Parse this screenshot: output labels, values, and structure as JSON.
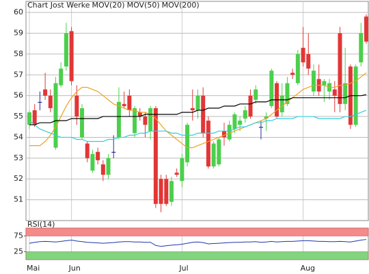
{
  "chart_data": [
    {
      "type": "candlestick",
      "title": "Chart Jost Werke",
      "title_color": "#999999",
      "categories": [
        "Mai",
        null,
        null,
        null,
        null,
        null,
        null,
        null,
        "Jun",
        null,
        null,
        null,
        null,
        null,
        null,
        null,
        null,
        null,
        null,
        null,
        null,
        null,
        null,
        null,
        null,
        null,
        null,
        null,
        null,
        "Jul",
        null,
        null,
        null,
        null,
        null,
        null,
        null,
        null,
        null,
        null,
        null,
        null,
        null,
        null,
        null,
        null,
        null,
        null,
        null,
        null,
        null,
        null,
        "Aug",
        null,
        null,
        null,
        null,
        null,
        null,
        null,
        null,
        null,
        null,
        null,
        null
      ],
      "open": [
        54.6,
        55.3,
        55.7,
        56.3,
        56.0,
        53.5,
        56.5,
        57.4,
        59.1,
        56.0,
        54.0,
        53.7,
        52.4,
        53.3,
        52.7,
        52.2,
        53.3,
        54.0,
        55.6,
        56.0,
        54.2,
        55.2,
        55.0,
        54.3,
        55.4,
        52.0,
        52.0,
        50.9,
        52.3,
        51.9,
        52.8,
        55.4,
        55.3,
        56.0,
        54.8,
        52.6,
        52.7,
        54.3,
        53.9,
        54.4,
        54.6,
        54.9,
        56.0,
        55.8,
        54.5,
        54.9,
        55.5,
        56.6,
        55.2,
        55.6,
        57.1,
        56.6,
        58.3,
        58.0,
        56.2,
        56.8,
        56.5,
        56.2,
        56.3,
        59.0,
        55.6,
        57.4,
        54.6,
        57.6,
        59.8
      ],
      "high": [
        55.3,
        55.6,
        56.2,
        57.1,
        56.3,
        56.9,
        57.6,
        59.5,
        59.3,
        56.5,
        55.6,
        53.8,
        53.4,
        53.5,
        52.9,
        53.2,
        54.1,
        56.4,
        56.2,
        56.3,
        55.5,
        55.4,
        55.2,
        55.5,
        55.5,
        52.2,
        52.2,
        52.1,
        52.5,
        53.2,
        54.7,
        56.3,
        56.3,
        56.4,
        55.0,
        53.8,
        54.0,
        54.7,
        54.8,
        55.2,
        55.0,
        55.5,
        56.3,
        56.5,
        54.8,
        55.2,
        57.3,
        56.7,
        56.6,
        56.9,
        57.3,
        58.2,
        59.3,
        59.0,
        57.5,
        57.5,
        56.8,
        56.8,
        56.7,
        59.3,
        58.3,
        57.5,
        57.5,
        59.5,
        59.9
      ],
      "low": [
        54.4,
        54.5,
        55.3,
        55.8,
        55.2,
        53.4,
        56.4,
        57.2,
        56.5,
        54.6,
        53.9,
        52.8,
        52.3,
        52.7,
        51.9,
        52.0,
        53.0,
        53.9,
        55.4,
        55.0,
        54.0,
        54.8,
        54.0,
        53.9,
        50.6,
        50.4,
        50.7,
        50.7,
        52.1,
        51.6,
        52.6,
        54.8,
        54.9,
        54.0,
        52.5,
        52.5,
        52.6,
        53.6,
        53.8,
        54.2,
        54.3,
        54.7,
        54.9,
        55.6,
        53.9,
        54.3,
        55.4,
        54.9,
        55.0,
        55.5,
        56.8,
        56.5,
        57.4,
        57.0,
        56.0,
        56.0,
        55.7,
        55.8,
        55.2,
        55.2,
        55.3,
        54.4,
        54.5,
        57.4,
        58.5
      ],
      "close": [
        55.2,
        54.6,
        55.7,
        56.0,
        55.4,
        56.6,
        57.3,
        59.0,
        56.7,
        55.0,
        55.4,
        53.0,
        53.2,
        52.9,
        52.2,
        53.0,
        53.3,
        55.7,
        55.5,
        55.3,
        55.4,
        55.0,
        54.6,
        55.4,
        50.8,
        50.8,
        50.8,
        51.9,
        52.2,
        53.0,
        54.6,
        55.3,
        56.0,
        54.2,
        52.6,
        53.7,
        53.9,
        54.0,
        54.6,
        55.1,
        54.8,
        55.3,
        55.0,
        56.3,
        54.5,
        55.0,
        57.2,
        55.0,
        56.0,
        56.6,
        57.0,
        58.0,
        57.6,
        57.3,
        57.2,
        56.2,
        56.7,
        56.6,
        56.0,
        55.6,
        56.6,
        54.6,
        57.4,
        59.0,
        58.6
      ],
      "up_color": "#4ccf4c",
      "down_color": "#e23636",
      "flat_color": "#2a2a9c",
      "series": [
        {
          "name": "MOV(20)",
          "color": "#f0a020",
          "values": [
            53.6,
            53.6,
            53.6,
            53.8,
            54.1,
            54.5,
            55.0,
            55.5,
            55.9,
            56.2,
            56.4,
            56.4,
            56.3,
            56.2,
            56.0,
            55.8,
            55.6,
            55.5,
            55.4,
            55.3,
            55.3,
            55.2,
            55.2,
            55.1,
            54.9,
            54.6,
            54.3,
            54.1,
            53.9,
            53.7,
            53.5,
            53.5,
            53.6,
            53.7,
            53.8,
            53.9,
            54.0,
            54.1,
            54.2,
            54.3,
            54.4,
            54.5,
            54.6,
            54.7,
            54.8,
            54.9,
            55.1,
            55.3,
            55.5,
            55.7,
            55.9,
            56.1,
            56.3,
            56.4,
            56.5,
            56.5,
            56.5,
            56.4,
            56.4,
            56.5,
            56.5,
            56.6,
            56.7,
            56.9,
            57.1
          ]
        },
        {
          "name": "MOV(50)",
          "color": "#33ccdd",
          "values": [
            54.8,
            54.6,
            54.4,
            54.3,
            54.2,
            54.1,
            54.0,
            54.0,
            54.0,
            53.9,
            53.9,
            53.8,
            53.8,
            53.8,
            53.8,
            53.9,
            53.9,
            54.0,
            54.0,
            54.1,
            54.1,
            54.2,
            54.2,
            54.3,
            54.3,
            54.3,
            54.3,
            54.2,
            54.2,
            54.1,
            54.1,
            54.1,
            54.2,
            54.2,
            54.2,
            54.2,
            54.3,
            54.3,
            54.3,
            54.4,
            54.5,
            54.5,
            54.6,
            54.7,
            54.7,
            54.8,
            54.8,
            54.9,
            54.9,
            54.9,
            54.9,
            55.0,
            55.0,
            55.0,
            55.0,
            54.9,
            54.9,
            54.9,
            54.9,
            54.9,
            55.0,
            55.0,
            55.1,
            55.2,
            55.3
          ]
        },
        {
          "name": "MOV(200)",
          "color": "#000000",
          "values": [
            54.6,
            54.6,
            54.7,
            54.7,
            54.7,
            54.8,
            54.8,
            54.8,
            54.9,
            54.9,
            54.9,
            54.9,
            54.9,
            54.9,
            55.0,
            55.0,
            55.0,
            55.0,
            55.0,
            55.0,
            55.0,
            55.0,
            55.1,
            55.1,
            55.1,
            55.1,
            55.1,
            55.1,
            55.1,
            55.2,
            55.2,
            55.2,
            55.3,
            55.3,
            55.4,
            55.4,
            55.4,
            55.5,
            55.5,
            55.5,
            55.6,
            55.6,
            55.6,
            55.7,
            55.7,
            55.7,
            55.8,
            55.8,
            55.8,
            55.8,
            55.9,
            55.9,
            55.9,
            55.9,
            55.9,
            55.9,
            55.9,
            55.9,
            55.9,
            55.9,
            55.9,
            56.0,
            56.0,
            56.0,
            56.05
          ]
        }
      ],
      "ylim": [
        50,
        60.53
      ],
      "yticks": [
        51,
        52,
        53,
        54,
        55,
        56,
        57,
        58,
        59,
        60
      ],
      "grid": true
    },
    {
      "type": "line",
      "title": "RSI(14)",
      "color": "#2233aa",
      "values": [
        52,
        55,
        57,
        58,
        57,
        56,
        58,
        60,
        62,
        59,
        57,
        55,
        54,
        53,
        52,
        53,
        54,
        56,
        57,
        57,
        56,
        56,
        55,
        55,
        45,
        42,
        44,
        46,
        47,
        49,
        52,
        55,
        56,
        54,
        50,
        51,
        52,
        53,
        54,
        55,
        55,
        56,
        56,
        57,
        55,
        56,
        58,
        56,
        57,
        58,
        58,
        59,
        60,
        60,
        59,
        58,
        58,
        57,
        57,
        58,
        57,
        56,
        59,
        62,
        64
      ],
      "bands": [
        {
          "from": 75,
          "to": 100,
          "color": "#f58a8a"
        },
        {
          "from": 0,
          "to": 25,
          "color": "#7fd67f"
        }
      ],
      "ylim": [
        0,
        100
      ],
      "yticks": [
        25,
        75
      ]
    }
  ]
}
